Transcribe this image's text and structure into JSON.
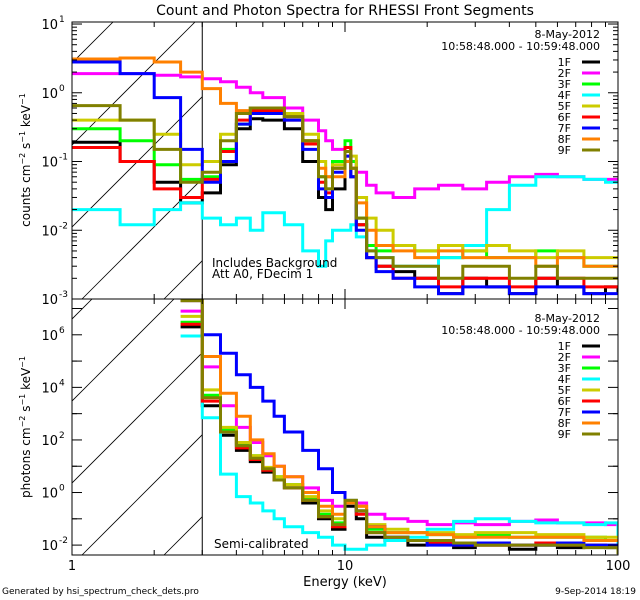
{
  "chart_data": [
    {
      "type": "line",
      "panel": "top",
      "title": "Count and Photon Spectra for RHESSI Front Segments",
      "xlabel": "",
      "ylabel": "counts cm^-2 s^-1 keV^-1",
      "xscale": "log",
      "yscale": "log",
      "xlim": [
        1,
        100
      ],
      "ylim": [
        0.001,
        10.7
      ],
      "x_ticks": [
        "1",
        "10",
        "100"
      ],
      "y_ticks": [
        {
          "exp": "1",
          "value": 10
        },
        {
          "exp": "0",
          "value": 1
        },
        {
          "exp": "-1",
          "value": 0.1
        },
        {
          "exp": "-2",
          "value": 0.01
        },
        {
          "exp": "-3",
          "value": 0.001
        }
      ],
      "hatched_below_keV": 3,
      "date": "8-May-2012",
      "time_range": "10:58:48.000 - 10:59:48.000",
      "annotations": [
        "Includes Background",
        "Att A0, FDecim 1"
      ],
      "legend_position": "top-right",
      "energy_keV": [
        1.0,
        1.5,
        2.0,
        2.5,
        3.0,
        3.5,
        4.0,
        4.5,
        5.0,
        6.0,
        7.0,
        8.0,
        8.5,
        9.0,
        10.0,
        10.5,
        11.0,
        12.0,
        13.0,
        15.0,
        18.0,
        22.0,
        27.0,
        33.0,
        40.0,
        50.0,
        60.0,
        75.0,
        90.0,
        100.0
      ],
      "series": [
        {
          "name": "1F",
          "color": "#000000",
          "values": [
            0.19,
            0.1,
            0.05,
            0.025,
            0.035,
            0.09,
            0.3,
            0.42,
            0.4,
            0.3,
            0.1,
            0.03,
            0.02,
            0.04,
            0.1,
            0.06,
            0.012,
            0.004,
            0.003,
            0.0025,
            0.002,
            0.0012,
            0.002,
            0.0015,
            0.0012,
            0.002,
            0.0015,
            0.0012,
            0.0015,
            0.0012
          ]
        },
        {
          "name": "2F",
          "color": "#ff00ff",
          "values": [
            1.9,
            1.9,
            1.8,
            1.7,
            1.6,
            1.45,
            1.2,
            1.0,
            0.85,
            0.6,
            0.4,
            0.28,
            0.2,
            0.15,
            0.12,
            0.1,
            0.07,
            0.045,
            0.035,
            0.03,
            0.04,
            0.045,
            0.04,
            0.05,
            0.06,
            0.065,
            0.06,
            0.055,
            0.055,
            0.05
          ]
        },
        {
          "name": "3F",
          "color": "#00ff00",
          "values": [
            0.3,
            0.2,
            0.09,
            0.055,
            0.06,
            0.15,
            0.35,
            0.5,
            0.55,
            0.45,
            0.2,
            0.06,
            0.04,
            0.1,
            0.2,
            0.1,
            0.015,
            0.006,
            0.005,
            0.006,
            0.005,
            0.004,
            0.005,
            0.004,
            0.004,
            0.005,
            0.004,
            0.003,
            0.003,
            0.003
          ]
        },
        {
          "name": "4F",
          "color": "#00ffff",
          "values": [
            0.02,
            0.012,
            0.02,
            0.025,
            0.015,
            0.012,
            0.015,
            0.01,
            0.018,
            0.012,
            0.005,
            0.003,
            0.007,
            0.01,
            0.01,
            0.012,
            0.008,
            0.005,
            0.004,
            0.003,
            0.003,
            0.004,
            0.006,
            0.02,
            0.045,
            0.06,
            0.06,
            0.055,
            0.05,
            0.05
          ]
        },
        {
          "name": "5F",
          "color": "#cccc00",
          "values": [
            0.4,
            0.4,
            0.25,
            0.09,
            0.1,
            0.25,
            0.5,
            0.6,
            0.6,
            0.5,
            0.25,
            0.1,
            0.06,
            0.09,
            0.16,
            0.12,
            0.03,
            0.015,
            0.01,
            0.006,
            0.005,
            0.006,
            0.005,
            0.006,
            0.005,
            0.004,
            0.005,
            0.004,
            0.004,
            0.004
          ]
        },
        {
          "name": "6F",
          "color": "#ff0000",
          "values": [
            0.16,
            0.1,
            0.04,
            0.03,
            0.055,
            0.14,
            0.4,
            0.55,
            0.55,
            0.4,
            0.18,
            0.05,
            0.035,
            0.08,
            0.16,
            0.08,
            0.012,
            0.004,
            0.003,
            0.002,
            0.002,
            0.0015,
            0.002,
            0.002,
            0.0015,
            0.002,
            0.002,
            0.0015,
            0.0015,
            0.0015
          ]
        },
        {
          "name": "7F",
          "color": "#0000ff",
          "values": [
            2.8,
            1.9,
            0.85,
            0.15,
            0.05,
            0.1,
            0.35,
            0.5,
            0.5,
            0.4,
            0.15,
            0.04,
            0.03,
            0.07,
            0.12,
            0.06,
            0.01,
            0.004,
            0.0025,
            0.002,
            0.0015,
            0.0012,
            0.0015,
            0.0015,
            0.0012,
            0.0015,
            0.0015,
            0.0012,
            0.0012,
            0.0012
          ]
        },
        {
          "name": "8F",
          "color": "#ff8000",
          "values": [
            3.1,
            3.2,
            2.8,
            2.0,
            1.15,
            0.7,
            0.55,
            0.6,
            0.6,
            0.45,
            0.2,
            0.08,
            0.06,
            0.06,
            0.1,
            0.08,
            0.025,
            0.01,
            0.006,
            0.005,
            0.004,
            0.005,
            0.004,
            0.004,
            0.004,
            0.003,
            0.004,
            0.003,
            0.003,
            0.003
          ]
        },
        {
          "name": "9F",
          "color": "#808000",
          "values": [
            0.65,
            0.4,
            0.15,
            0.05,
            0.07,
            0.2,
            0.5,
            0.6,
            0.6,
            0.45,
            0.2,
            0.06,
            0.04,
            0.08,
            0.14,
            0.08,
            0.015,
            0.005,
            0.004,
            0.003,
            0.003,
            0.002,
            0.003,
            0.003,
            0.002,
            0.003,
            0.002,
            0.002,
            0.002,
            0.002
          ]
        }
      ]
    },
    {
      "type": "line",
      "panel": "bottom",
      "title": "",
      "xlabel": "Energy (keV)",
      "ylabel": "photons cm^-2 s^-1 keV^-1",
      "xscale": "log",
      "yscale": "log",
      "xlim": [
        1,
        100
      ],
      "ylim": [
        0.0042,
        23000000
      ],
      "x_ticks": [
        "1",
        "10",
        "100"
      ],
      "y_ticks": [
        {
          "exp": "6",
          "value": 1000000
        },
        {
          "exp": "4",
          "value": 10000
        },
        {
          "exp": "2",
          "value": 100
        },
        {
          "exp": "0",
          "value": 1
        },
        {
          "exp": "-2",
          "value": 0.01
        }
      ],
      "hatched_below_keV": 3,
      "date": "8-May-2012",
      "time_range": "10:58:48.000 - 10:59:48.000",
      "annotations": [
        "Semi-calibrated"
      ],
      "legend_position": "top-right",
      "energy_keV": [
        2.5,
        3.0,
        3.5,
        4.0,
        4.5,
        5.0,
        5.5,
        6.0,
        7.0,
        8.0,
        9.0,
        10.0,
        11.0,
        12.0,
        14.0,
        17.0,
        20.0,
        25.0,
        30.0,
        40.0,
        50.0,
        60.0,
        75.0,
        90.0,
        100.0
      ],
      "series": [
        {
          "name": "1F",
          "color": "#000000",
          "values": [
            2000000,
            2000,
            150,
            40,
            15,
            6,
            3,
            1.5,
            0.4,
            0.1,
            0.04,
            0.3,
            0.1,
            0.02,
            0.015,
            0.01,
            0.012,
            0.008,
            0.01,
            0.007,
            0.01,
            0.008,
            0.009,
            0.008,
            0.007
          ]
        },
        {
          "name": "2F",
          "color": "#ff00ff",
          "values": [
            8000000,
            60000,
            2000,
            300,
            80,
            25,
            10,
            4,
            1.5,
            0.5,
            0.3,
            0.5,
            0.4,
            0.15,
            0.1,
            0.08,
            0.06,
            0.07,
            0.06,
            0.08,
            0.09,
            0.07,
            0.07,
            0.06,
            0.06
          ]
        },
        {
          "name": "3F",
          "color": "#00ff00",
          "values": [
            3000000,
            5000,
            250,
            70,
            25,
            8,
            4,
            2,
            0.6,
            0.15,
            0.07,
            0.5,
            0.2,
            0.04,
            0.03,
            0.03,
            0.025,
            0.02,
            0.025,
            0.02,
            0.02,
            0.02,
            0.02,
            0.015,
            0.015
          ]
        },
        {
          "name": "4F",
          "color": "#00ffff",
          "values": [
            900000,
            700,
            5,
            0.7,
            0.4,
            0.2,
            0.1,
            0.05,
            0.03,
            0.02,
            0.01,
            0.007,
            0.007,
            0.01,
            0.015,
            0.02,
            0.04,
            0.08,
            0.1,
            0.08,
            0.07,
            0.07,
            0.06,
            0.07,
            0.005
          ]
        },
        {
          "name": "5F",
          "color": "#cccc00",
          "values": [
            5000000,
            8000,
            300,
            80,
            25,
            9,
            4,
            2,
            0.7,
            0.2,
            0.1,
            0.4,
            0.3,
            0.06,
            0.04,
            0.03,
            0.03,
            0.025,
            0.03,
            0.03,
            0.025,
            0.025,
            0.02,
            0.02,
            0.02
          ]
        },
        {
          "name": "6F",
          "color": "#ff0000",
          "values": [
            2500000,
            3000,
            200,
            50,
            18,
            7,
            3,
            1.5,
            0.5,
            0.12,
            0.05,
            0.4,
            0.15,
            0.03,
            0.02,
            0.015,
            0.012,
            0.01,
            0.01,
            0.01,
            0.012,
            0.01,
            0.01,
            0.009,
            0.009
          ]
        },
        {
          "name": "7F",
          "color": "#0000ff",
          "values": [
            20000000,
            1000000,
            200000,
            30000,
            10000,
            3000,
            800,
            200,
            40,
            8,
            1,
            0.4,
            0.2,
            0.05,
            0.02,
            0.015,
            0.01,
            0.01,
            0.012,
            0.01,
            0.01,
            0.012,
            0.01,
            0.01,
            0.01
          ]
        },
        {
          "name": "8F",
          "color": "#ff8000",
          "values": [
            20000000,
            150000,
            6000,
            800,
            100,
            30,
            10,
            4,
            1,
            0.3,
            0.15,
            0.4,
            0.3,
            0.05,
            0.03,
            0.03,
            0.025,
            0.02,
            0.02,
            0.02,
            0.02,
            0.02,
            0.015,
            0.015,
            0.015
          ]
        },
        {
          "name": "9F",
          "color": "#808000",
          "values": [
            20000000,
            4000,
            200,
            60,
            20,
            8,
            3,
            1.5,
            0.5,
            0.12,
            0.06,
            0.5,
            0.2,
            0.03,
            0.02,
            0.015,
            0.015,
            0.012,
            0.01,
            0.01,
            0.01,
            0.01,
            0.008,
            0.008,
            0.0045
          ]
        }
      ]
    }
  ],
  "footer": {
    "generated_by": "Generated by hsi_spectrum_check_dets.pro",
    "timestamp": "9-Sep-2014 18:19"
  }
}
